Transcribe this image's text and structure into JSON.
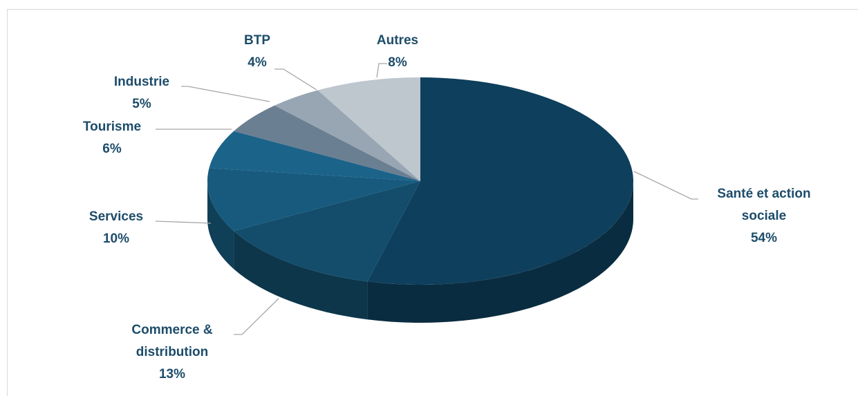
{
  "chart_data": {
    "type": "pie3d",
    "categories": [
      "Santé et action sociale",
      "Commerce & distribution",
      "Services",
      "Tourisme",
      "Industrie",
      "BTP",
      "Autres"
    ],
    "values": [
      54,
      13,
      10,
      6,
      5,
      4,
      8
    ],
    "value_labels": [
      "54%",
      "13%",
      "10%",
      "6%",
      "5%",
      "4%",
      "8%"
    ],
    "colors": [
      "#0e3f5c",
      "#134d6b",
      "#175a7e",
      "#1b6389",
      "#6b7f92",
      "#98a6b3",
      "#bec6ce"
    ]
  }
}
